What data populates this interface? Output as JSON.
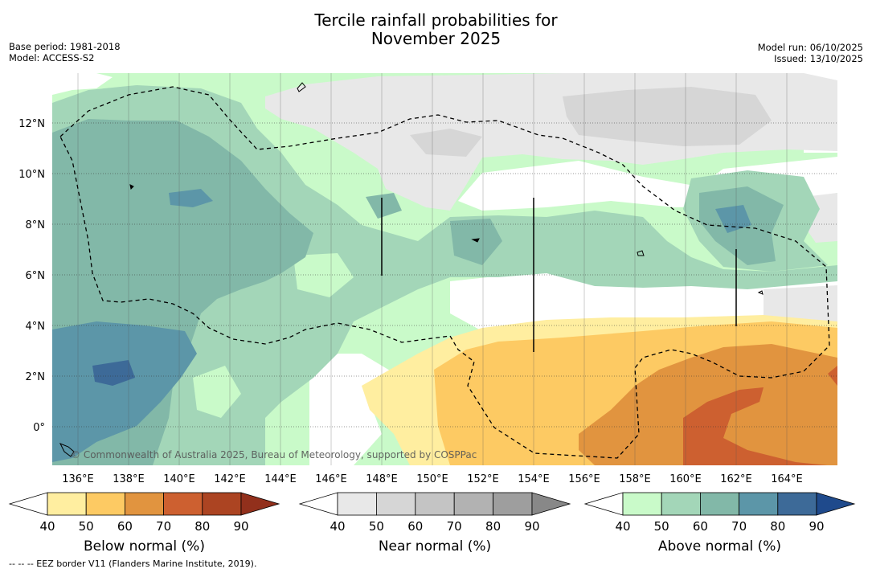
{
  "title_line1": "Tercile rainfall probabilities for",
  "title_line2": "November 2025",
  "base_period": "Base period: 1981-2018",
  "model": "Model: ACCESS-S2",
  "model_run": "Model run: 06/10/2025",
  "issued": "Issued: 13/10/2025",
  "copyright": "© Commonwealth of Australia 2025, Bureau of Meteorology, supported by COSPPac",
  "footnote": "--  --  -- EEZ border V11 (Flanders Marine Institute, 2019).",
  "chart_data": {
    "type": "heatmap",
    "map_extent": {
      "lon": [
        134.0,
        165.5
      ],
      "lat": [
        -1.5,
        14.0
      ]
    },
    "x_ticks": [
      "136°E",
      "138°E",
      "140°E",
      "142°E",
      "144°E",
      "146°E",
      "148°E",
      "150°E",
      "152°E",
      "154°E",
      "156°E",
      "158°E",
      "160°E",
      "162°E",
      "164°E"
    ],
    "x_tick_values": [
      136,
      138,
      140,
      142,
      144,
      146,
      148,
      150,
      152,
      154,
      156,
      158,
      160,
      162,
      164
    ],
    "y_ticks": [
      "12°N",
      "10°N",
      "8°N",
      "6°N",
      "4°N",
      "2°N",
      "0°"
    ],
    "y_tick_values": [
      12,
      10,
      8,
      6,
      4,
      2,
      0
    ],
    "gridlines": true,
    "colorbars": [
      {
        "name": "below",
        "label": "Below normal (%)",
        "ticks": [
          "40",
          "50",
          "60",
          "70",
          "80",
          "90"
        ],
        "colors": [
          "#ffeea0",
          "#fdca63",
          "#e1943f",
          "#cd6030",
          "#ac4422",
          "#92301c"
        ]
      },
      {
        "name": "near",
        "label": "Near normal (%)",
        "ticks": [
          "40",
          "50",
          "60",
          "70",
          "80",
          "90"
        ],
        "colors": [
          "#e8e8e8",
          "#d6d6d6",
          "#c4c4c4",
          "#b2b2b2",
          "#9e9e9e",
          "#888888"
        ]
      },
      {
        "name": "above",
        "label": "Above normal (%)",
        "ticks": [
          "40",
          "50",
          "60",
          "70",
          "80",
          "90"
        ],
        "colors": [
          "#c9fac9",
          "#a3d6b8",
          "#82b8a8",
          "#5c96a8",
          "#3d6a98",
          "#1f4a8c"
        ]
      }
    ],
    "regions": [
      {
        "category": "above",
        "level": "40-50"
      },
      {
        "category": "above",
        "level": "50-60"
      },
      {
        "category": "above",
        "level": "60-70"
      },
      {
        "category": "above",
        "level": "70-80"
      },
      {
        "category": "near",
        "level": "40-50"
      },
      {
        "category": "near",
        "level": "50-60"
      },
      {
        "category": "below",
        "level": "40-50"
      },
      {
        "category": "below",
        "level": "50-60"
      },
      {
        "category": "below",
        "level": "60-70"
      },
      {
        "category": "below",
        "level": "70-80"
      }
    ]
  }
}
